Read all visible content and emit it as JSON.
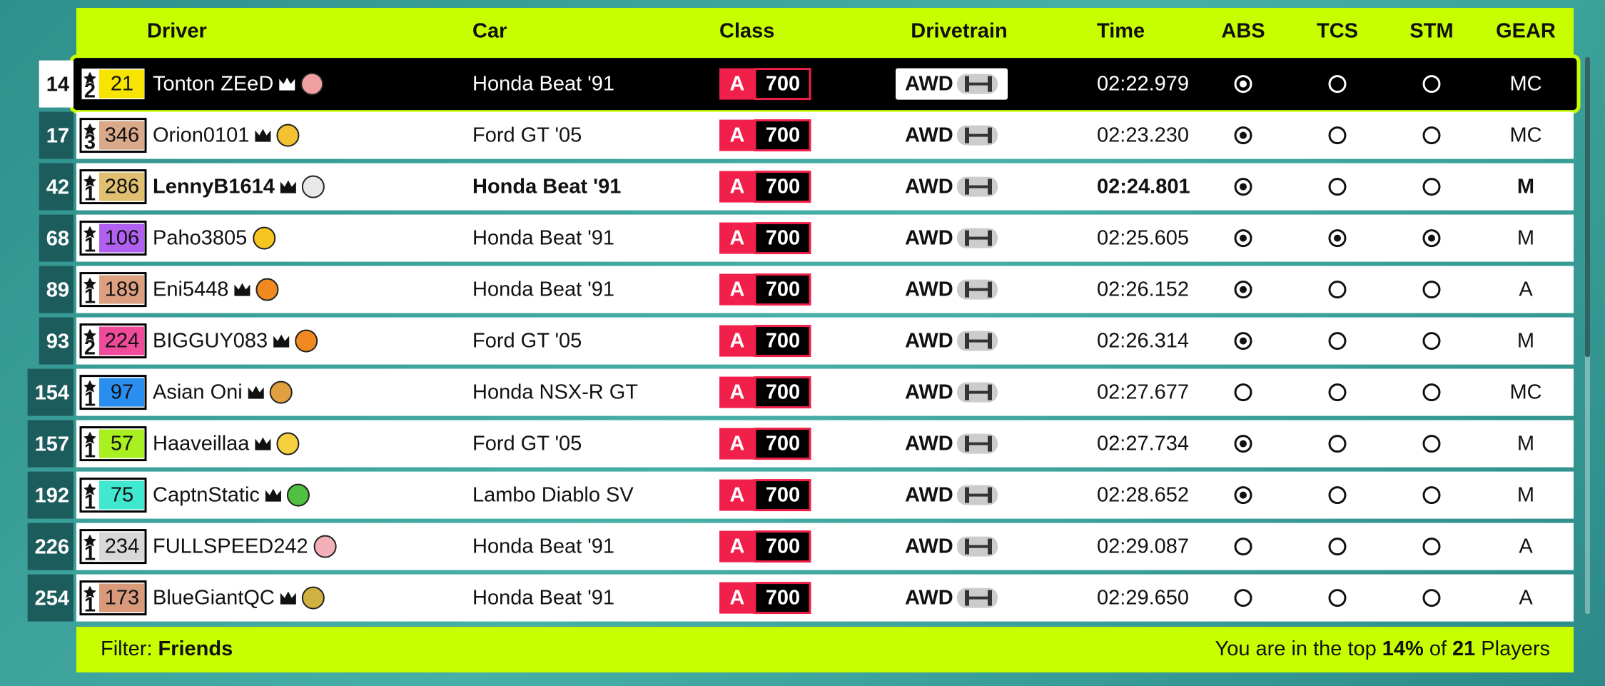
{
  "header": {
    "columns": [
      "Driver",
      "Car",
      "Class",
      "Drivetrain",
      "Time",
      "ABS",
      "TCS",
      "STM",
      "GEAR"
    ]
  },
  "rows": [
    {
      "rank": 14,
      "tier": 2,
      "level": 21,
      "level_color": "#f7e400",
      "driver": "Tonton ZEeD",
      "crown": true,
      "badge_color": "#f0a0a0",
      "car": "Honda Beat '91",
      "class": "A",
      "class_rating": 700,
      "drivetrain": "AWD",
      "time": "02:22.979",
      "abs": true,
      "tcs": false,
      "stm": false,
      "gear": "MC",
      "highlight": true,
      "bold": false
    },
    {
      "rank": 17,
      "tier": 3,
      "level": 346,
      "level_color": "#d9a98a",
      "driver": "Orion0101",
      "crown": true,
      "badge_color": "#f2c230",
      "car": "Ford GT '05",
      "class": "A",
      "class_rating": 700,
      "drivetrain": "AWD",
      "time": "02:23.230",
      "abs": true,
      "tcs": false,
      "stm": false,
      "gear": "MC",
      "highlight": false,
      "bold": false
    },
    {
      "rank": 42,
      "tier": 1,
      "level": 286,
      "level_color": "#e0c070",
      "driver": "LennyB1614",
      "crown": true,
      "badge_color": "#e8e8e8",
      "car": "Honda Beat '91",
      "class": "A",
      "class_rating": 700,
      "drivetrain": "AWD",
      "time": "02:24.801",
      "abs": true,
      "tcs": false,
      "stm": false,
      "gear": "M",
      "highlight": false,
      "bold": true
    },
    {
      "rank": 68,
      "tier": 1,
      "level": 106,
      "level_color": "#b060f0",
      "driver": "Paho3805",
      "crown": false,
      "badge_color": "#f7c520",
      "car": "Honda Beat '91",
      "class": "A",
      "class_rating": 700,
      "drivetrain": "AWD",
      "time": "02:25.605",
      "abs": true,
      "tcs": true,
      "stm": true,
      "gear": "M",
      "highlight": false,
      "bold": false
    },
    {
      "rank": 89,
      "tier": 1,
      "level": 189,
      "level_color": "#dca080",
      "driver": "Eni5448",
      "crown": true,
      "badge_color": "#f08a20",
      "car": "Honda Beat '91",
      "class": "A",
      "class_rating": 700,
      "drivetrain": "AWD",
      "time": "02:26.152",
      "abs": true,
      "tcs": false,
      "stm": false,
      "gear": "A",
      "highlight": false,
      "bold": false
    },
    {
      "rank": 93,
      "tier": 2,
      "level": 224,
      "level_color": "#f04a9a",
      "driver": "BIGGUY083",
      "crown": true,
      "badge_color": "#f08a20",
      "car": "Ford GT '05",
      "class": "A",
      "class_rating": 700,
      "drivetrain": "AWD",
      "time": "02:26.314",
      "abs": true,
      "tcs": false,
      "stm": false,
      "gear": "M",
      "highlight": false,
      "bold": false
    },
    {
      "rank": 154,
      "tier": 1,
      "level": 97,
      "level_color": "#2a8ef0",
      "driver": "Asian Oni",
      "crown": true,
      "badge_color": "#e0a040",
      "car": "Honda NSX-R GT",
      "class": "A",
      "class_rating": 700,
      "drivetrain": "AWD",
      "time": "02:27.677",
      "abs": false,
      "tcs": false,
      "stm": false,
      "gear": "MC",
      "highlight": false,
      "bold": false
    },
    {
      "rank": 157,
      "tier": 1,
      "level": 57,
      "level_color": "#a8f020",
      "driver": "Haaveillaa",
      "crown": true,
      "badge_color": "#f7d040",
      "car": "Ford GT '05",
      "class": "A",
      "class_rating": 700,
      "drivetrain": "AWD",
      "time": "02:27.734",
      "abs": true,
      "tcs": false,
      "stm": false,
      "gear": "M",
      "highlight": false,
      "bold": false
    },
    {
      "rank": 192,
      "tier": 1,
      "level": 75,
      "level_color": "#40e8d0",
      "driver": "CaptnStatic",
      "crown": true,
      "badge_color": "#50c040",
      "car": "Lambo Diablo SV",
      "class": "A",
      "class_rating": 700,
      "drivetrain": "AWD",
      "time": "02:28.652",
      "abs": true,
      "tcs": false,
      "stm": false,
      "gear": "M",
      "highlight": false,
      "bold": false
    },
    {
      "rank": 226,
      "tier": 1,
      "level": 234,
      "level_color": "#d8d8d8",
      "driver": "FULLSPEED242",
      "crown": false,
      "badge_color": "#f4b0b8",
      "car": "Honda Beat '91",
      "class": "A",
      "class_rating": 700,
      "drivetrain": "AWD",
      "time": "02:29.087",
      "abs": false,
      "tcs": false,
      "stm": false,
      "gear": "A",
      "highlight": false,
      "bold": false
    },
    {
      "rank": 254,
      "tier": 1,
      "level": 173,
      "level_color": "#d89a7a",
      "driver": "BlueGiantQC",
      "crown": true,
      "badge_color": "#d0b040",
      "car": "Honda Beat '91",
      "class": "A",
      "class_rating": 700,
      "drivetrain": "AWD",
      "time": "02:29.650",
      "abs": false,
      "tcs": false,
      "stm": false,
      "gear": "A",
      "highlight": false,
      "bold": false
    }
  ],
  "footer": {
    "filter_label": "Filter:",
    "filter_value": "Friends",
    "summary_prefix": "You are in the top",
    "percentile": "14%",
    "summary_of": "of",
    "player_count": 21,
    "summary_suffix": "Players"
  }
}
